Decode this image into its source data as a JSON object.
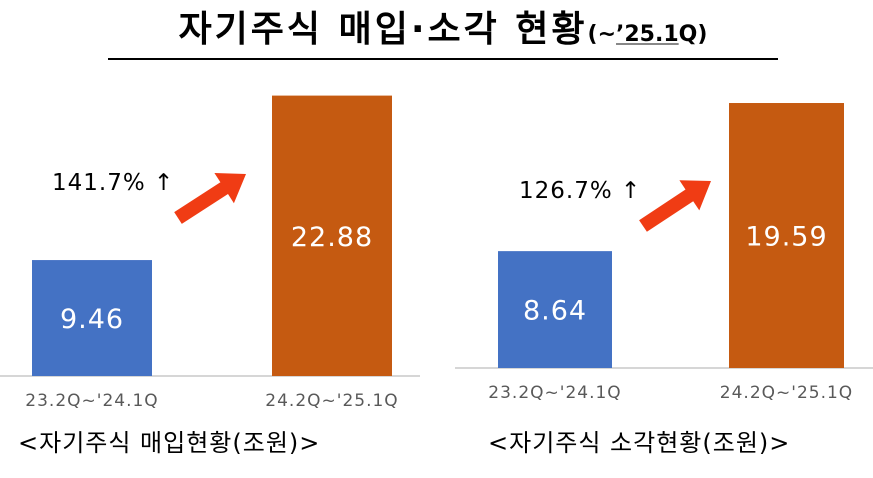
{
  "title": {
    "main": "자기주식 매입·소각 현황",
    "sub_open": "(~",
    "sub_mid": "’25.1",
    "sub_close": "Q)"
  },
  "colors": {
    "blue": "#4472C4",
    "orange": "#C55A11",
    "arrow": "#F03C14",
    "axis": "#C8C8C8"
  },
  "chart_data": [
    {
      "type": "bar",
      "categories": [
        "23.2Q~'24.1Q",
        "24.2Q~'25.1Q"
      ],
      "values": [
        9.46,
        22.88
      ],
      "value_labels": [
        "9.46",
        "22.88"
      ],
      "bar_colors": [
        "#4472C4",
        "#C55A11"
      ],
      "annotation": "141.7% ↑",
      "annotation_arrow": "arrow-up-right",
      "caption": "<자기주식 매입현황(조원)>",
      "ylim": [
        0,
        23.5
      ],
      "grid": false
    },
    {
      "type": "bar",
      "categories": [
        "23.2Q~'24.1Q",
        "24.2Q~'25.1Q"
      ],
      "values": [
        8.64,
        19.59
      ],
      "value_labels": [
        "8.64",
        "19.59"
      ],
      "bar_colors": [
        "#4472C4",
        "#C55A11"
      ],
      "annotation": "126.7% ↑",
      "annotation_arrow": "arrow-up-right",
      "caption": "<자기주식 소각현황(조원)>",
      "ylim": [
        0,
        20.7
      ],
      "grid": false
    }
  ]
}
